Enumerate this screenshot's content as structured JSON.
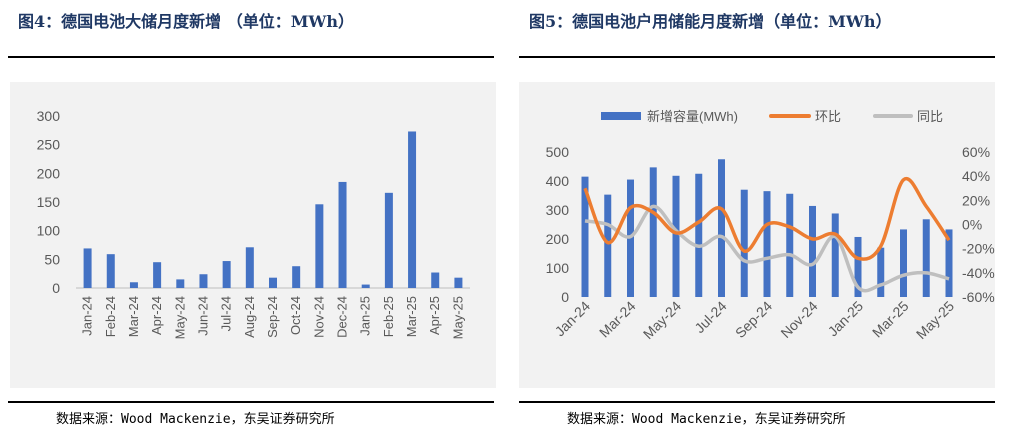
{
  "left_figure": {
    "title": "图4：德国电池大储月度新增 （单位：MWh）",
    "source": "数据来源：Wood Mackenzie，东吴证券研究所"
  },
  "right_figure": {
    "title": "图5：德国电池户用储能月度新增（单位：MWh）",
    "source": "数据来源：Wood Mackenzie，东吴证券研究所"
  },
  "colors": {
    "bar": "#4472c4",
    "mom": "#ed7d31",
    "yoy": "#bfbfbf",
    "title": "#1f3864",
    "axis_text": "#595959"
  },
  "chart_data": [
    {
      "type": "bar",
      "categories": [
        "Jan-24",
        "Feb-24",
        "Mar-24",
        "Apr-24",
        "May-24",
        "Jun-24",
        "Jul-24",
        "Aug-24",
        "Sep-24",
        "Oct-24",
        "Nov-24",
        "Dec-24",
        "Jan-25",
        "Feb-25",
        "Mar-25",
        "Apr-25",
        "May-25"
      ],
      "series": [
        {
          "values": [
            69,
            59,
            10,
            45,
            15,
            24,
            47,
            71,
            18,
            38,
            146,
            185,
            6,
            166,
            273,
            27,
            18
          ]
        }
      ],
      "ylim": [
        0,
        300
      ],
      "yticks": [
        "0",
        "50",
        "100",
        "150",
        "200",
        "250",
        "300"
      ],
      "grid": false,
      "legend": "none"
    },
    {
      "type": "bar",
      "categories": [
        "Jan-24",
        "Feb-24",
        "Mar-24",
        "Apr-24",
        "May-24",
        "Jun-24",
        "Jul-24",
        "Aug-24",
        "Sep-24",
        "Oct-24",
        "Nov-24",
        "Dec-24",
        "Jan-25",
        "Feb-25",
        "Mar-25",
        "Apr-25",
        "May-25"
      ],
      "xtick_labels": [
        "Jan-24",
        "Mar-24",
        "May-24",
        "Jul-24",
        "Sep-24",
        "Nov-24",
        "Jan-25",
        "Mar-25",
        "May-25"
      ],
      "series": [
        {
          "name": "新增容量(MWh)",
          "type": "bar",
          "axis": "left",
          "values": [
            415,
            353,
            405,
            447,
            418,
            425,
            475,
            370,
            365,
            356,
            314,
            288,
            207,
            170,
            233,
            268,
            233
          ]
        },
        {
          "name": "环比",
          "type": "line",
          "axis": "right",
          "values": [
            30,
            -15,
            14,
            10,
            -7,
            2,
            13,
            -22,
            0,
            -2,
            -12,
            -8,
            -28,
            -18,
            37,
            15,
            -13
          ]
        },
        {
          "name": "同比",
          "type": "line",
          "axis": "right",
          "values": [
            3,
            0,
            -10,
            15,
            -5,
            -18,
            -10,
            -30,
            -28,
            -25,
            -33,
            -10,
            -52,
            -50,
            -42,
            -40,
            -45
          ]
        }
      ],
      "ylim": [
        0,
        500
      ],
      "yticks": [
        "0",
        "100",
        "200",
        "300",
        "400",
        "500"
      ],
      "y2lim": [
        -60,
        60
      ],
      "y2ticks": [
        "60%",
        "40%",
        "20%",
        "0%",
        "-20%",
        "-40%",
        "-60%"
      ],
      "grid": false,
      "legend": "top"
    }
  ]
}
